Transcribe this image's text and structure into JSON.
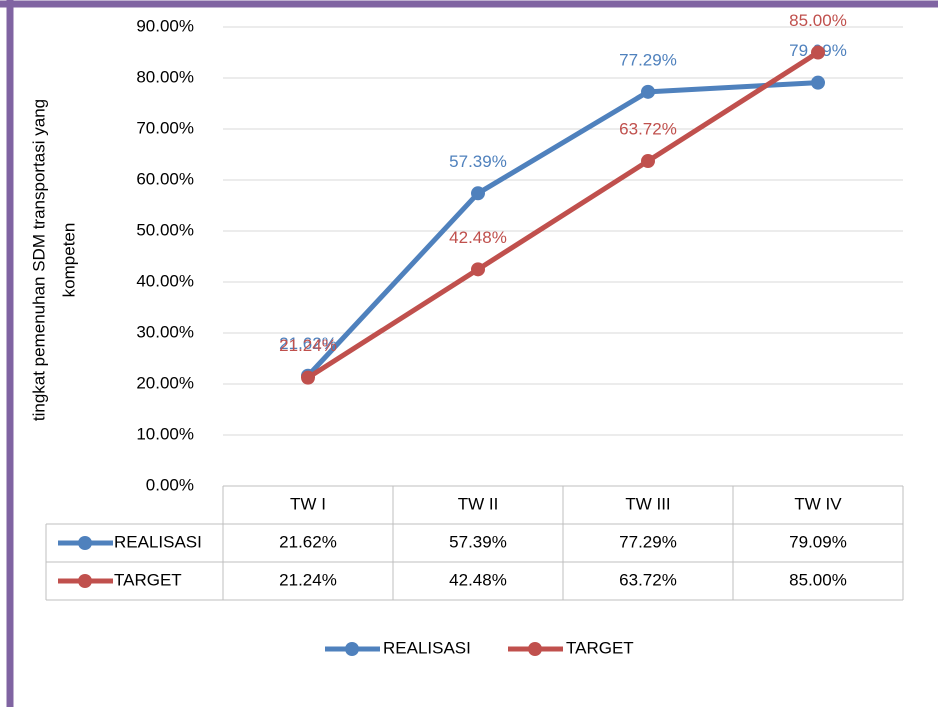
{
  "chart_data": {
    "type": "line",
    "ylabel": [
      "tingkat pemenuhan SDM transportasi yang",
      "kompeten"
    ],
    "categories": [
      "TW I",
      "TW II",
      "TW III",
      "TW IV"
    ],
    "series": [
      {
        "name": "REALISASI",
        "color": "#4f81bd",
        "values": [
          21.62,
          57.39,
          77.29,
          79.09
        ],
        "value_labels": [
          "21.62%",
          "57.39%",
          "77.29%",
          "79.09%"
        ]
      },
      {
        "name": "TARGET",
        "color": "#c0504d",
        "values": [
          21.24,
          42.48,
          63.72,
          85.0
        ],
        "value_labels": [
          "21.24%",
          "42.48%",
          "63.72%",
          "85.00%"
        ]
      }
    ],
    "ylim": [
      0,
      90
    ],
    "yticks": [
      {
        "value": 0,
        "label": "0.00%"
      },
      {
        "value": 10,
        "label": "10.00%"
      },
      {
        "value": 20,
        "label": "20.00%"
      },
      {
        "value": 30,
        "label": "30.00%"
      },
      {
        "value": 40,
        "label": "40.00%"
      },
      {
        "value": 50,
        "label": "50.00%"
      },
      {
        "value": 60,
        "label": "60.00%"
      },
      {
        "value": 70,
        "label": "70.00%"
      },
      {
        "value": 80,
        "label": "80.00%"
      },
      {
        "value": 90,
        "label": "90.00%"
      }
    ],
    "grid": true,
    "legend": "bottom"
  }
}
